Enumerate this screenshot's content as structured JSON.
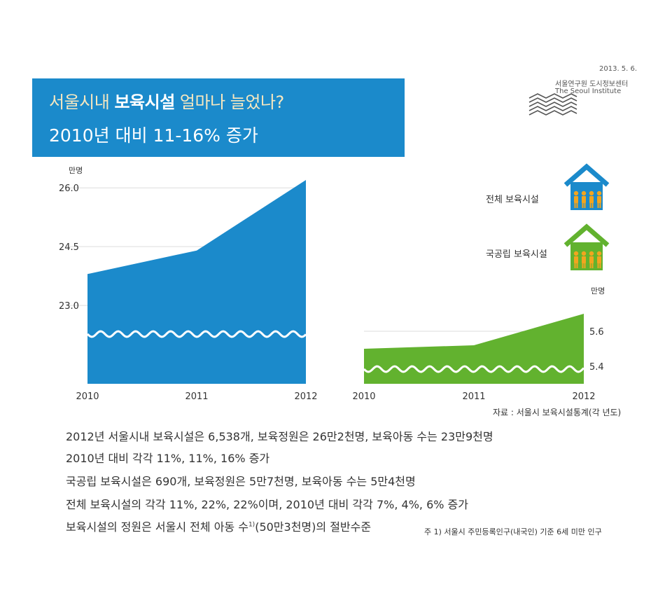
{
  "header": {
    "date": "2013. 5. 6.",
    "institute_kr": "서울연구원 도시정보센터",
    "institute_en": "The Seoul Institute"
  },
  "title": {
    "line1_part1": "서울시내 ",
    "line1_bold": "보육시설",
    "line1_part2": " 얼마나 늘었나?",
    "line2": "2010년 대비 11-16% 증가"
  },
  "legend": {
    "total": "전체  보육시설",
    "public": "국공립  보육시설"
  },
  "source": "자료 : 서울시 보육시설통계(각 년도)",
  "summary": {
    "line1": "2012년 서울시내 보육시설은 6,538개, 보육정원은 26만2천명, 보육아동 수는 23만9천명",
    "line2": "2010년 대비 각각 11%, 11%, 16% 증가",
    "line3": "국공립 보육시설은 690개, 보육정원은 5만7천명, 보육아동 수는 5만4천명",
    "line4": "전체 보육시설의 각각 11%, 22%, 22%이며, 2010년 대비 각각 7%, 4%, 6% 증가",
    "line5_pre": "보육시설의 정원은 서울시 전체 아동 수",
    "line5_sup": "1)",
    "line5_post": "(50만3천명)의 절반수준",
    "footnote": "주 1) 서울시 주민등록인구(내국인) 기준 6세 미만 인구"
  },
  "colors": {
    "blue": "#1b8acb",
    "green": "#62b22f",
    "title_accent": "#f7e8c0",
    "person": "#f2a51e"
  },
  "chart_data": [
    {
      "type": "area",
      "series_type": "전체 보육시설",
      "unit": "만명",
      "x": [
        "2010",
        "2011",
        "2012"
      ],
      "values": [
        23.8,
        24.4,
        26.2
      ],
      "yticks": [
        23.0,
        24.5,
        26.0
      ],
      "ylim": [
        21.0,
        26.2
      ],
      "axis_break": true,
      "grid": true,
      "color": "#1b8acb"
    },
    {
      "type": "area",
      "series_type": "국공립 보육시설",
      "unit": "만명",
      "x": [
        "2010",
        "2011",
        "2012"
      ],
      "values": [
        5.5,
        5.52,
        5.7
      ],
      "yticks": [
        5.4,
        5.6
      ],
      "ylim": [
        5.3,
        5.7
      ],
      "axis_break": true,
      "grid": true,
      "color": "#62b22f"
    }
  ]
}
